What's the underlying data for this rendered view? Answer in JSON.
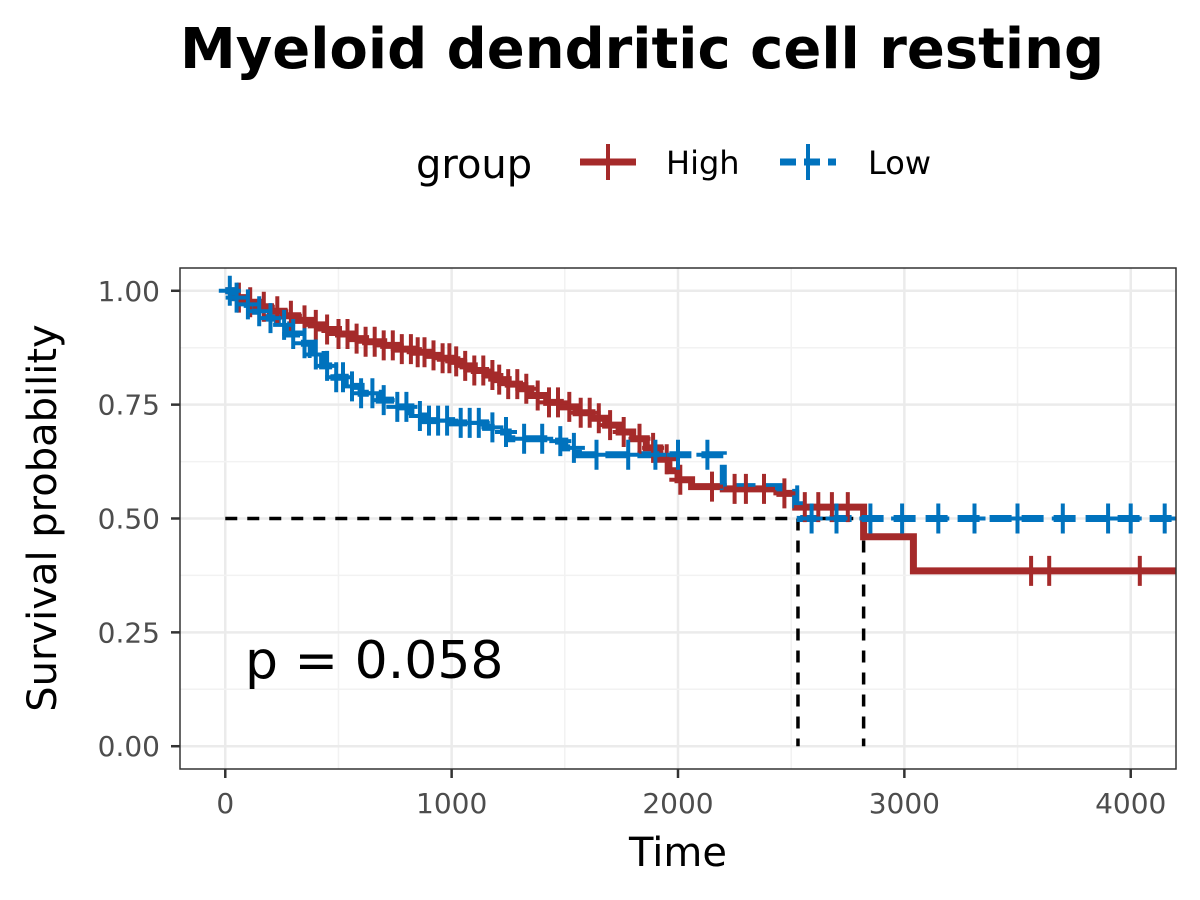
{
  "chart_data": {
    "type": "line",
    "subtype": "kaplan-meier",
    "title": "Myeloid dendritic cell resting",
    "xlabel": "Time",
    "ylabel": "Survival probability",
    "xlim": [
      -200,
      4200
    ],
    "ylim": [
      -0.05,
      1.05
    ],
    "x_ticks": [
      0,
      1000,
      2000,
      3000,
      4000
    ],
    "x_tick_labels": [
      "0",
      "1000",
      "2000",
      "3000",
      "4000"
    ],
    "y_ticks": [
      0,
      0.25,
      0.5,
      0.75,
      1.0
    ],
    "y_tick_labels": [
      "0.00",
      "0.25",
      "0.50",
      "0.75",
      "1.00"
    ],
    "grid": true,
    "legend": {
      "title": "group",
      "position": "top"
    },
    "annotation": "p = 0.058",
    "median_line": {
      "y": 0.5,
      "x": [
        2530,
        2820
      ]
    },
    "series": [
      {
        "name": "High",
        "color": "#a52a2a",
        "dash": "solid",
        "steps": [
          [
            0,
            1.0
          ],
          [
            40,
            0.985
          ],
          [
            90,
            0.975
          ],
          [
            150,
            0.965
          ],
          [
            200,
            0.955
          ],
          [
            260,
            0.945
          ],
          [
            320,
            0.935
          ],
          [
            380,
            0.925
          ],
          [
            440,
            0.915
          ],
          [
            500,
            0.905
          ],
          [
            560,
            0.895
          ],
          [
            620,
            0.888
          ],
          [
            700,
            0.88
          ],
          [
            760,
            0.872
          ],
          [
            830,
            0.865
          ],
          [
            900,
            0.858
          ],
          [
            950,
            0.852
          ],
          [
            1000,
            0.845
          ],
          [
            1050,
            0.835
          ],
          [
            1100,
            0.825
          ],
          [
            1150,
            0.815
          ],
          [
            1200,
            0.805
          ],
          [
            1250,
            0.795
          ],
          [
            1300,
            0.785
          ],
          [
            1350,
            0.77
          ],
          [
            1420,
            0.755
          ],
          [
            1480,
            0.745
          ],
          [
            1550,
            0.732
          ],
          [
            1620,
            0.72
          ],
          [
            1680,
            0.705
          ],
          [
            1740,
            0.69
          ],
          [
            1800,
            0.675
          ],
          [
            1860,
            0.655
          ],
          [
            1920,
            0.63
          ],
          [
            1960,
            0.605
          ],
          [
            2000,
            0.585
          ],
          [
            2060,
            0.57
          ],
          [
            2200,
            0.565
          ],
          [
            2450,
            0.555
          ],
          [
            2520,
            0.525
          ],
          [
            2820,
            0.46
          ],
          [
            3040,
            0.385
          ],
          [
            4200,
            0.385
          ]
        ],
        "censor_x": [
          60,
          110,
          170,
          230,
          290,
          350,
          400,
          450,
          500,
          540,
          580,
          620,
          660,
          700,
          740,
          780,
          820,
          850,
          880,
          920,
          960,
          990,
          1020,
          1060,
          1100,
          1140,
          1180,
          1210,
          1250,
          1290,
          1330,
          1380,
          1430,
          1470,
          1520,
          1570,
          1610,
          1650,
          1700,
          1760,
          1830,
          1890,
          1950,
          2010,
          2150,
          2250,
          2300,
          2380,
          2470,
          2560,
          2620,
          2680,
          2750,
          3560,
          3640,
          4040
        ]
      },
      {
        "name": "Low",
        "color": "#0072bd",
        "dash": "dashed",
        "steps": [
          [
            0,
            1.0
          ],
          [
            30,
            0.985
          ],
          [
            80,
            0.97
          ],
          [
            130,
            0.955
          ],
          [
            180,
            0.94
          ],
          [
            230,
            0.925
          ],
          [
            280,
            0.905
          ],
          [
            330,
            0.885
          ],
          [
            380,
            0.86
          ],
          [
            430,
            0.835
          ],
          [
            480,
            0.81
          ],
          [
            530,
            0.79
          ],
          [
            600,
            0.775
          ],
          [
            680,
            0.76
          ],
          [
            750,
            0.745
          ],
          [
            820,
            0.725
          ],
          [
            880,
            0.715
          ],
          [
            1000,
            0.71
          ],
          [
            1150,
            0.7
          ],
          [
            1200,
            0.69
          ],
          [
            1250,
            0.675
          ],
          [
            1450,
            0.67
          ],
          [
            1500,
            0.655
          ],
          [
            1560,
            0.64
          ],
          [
            2100,
            0.64
          ],
          [
            2200,
            0.57
          ],
          [
            2450,
            0.565
          ],
          [
            2520,
            0.53
          ],
          [
            2540,
            0.5
          ],
          [
            4200,
            0.5
          ]
        ],
        "censor_x": [
          20,
          50,
          100,
          150,
          200,
          260,
          300,
          350,
          400,
          450,
          490,
          520,
          560,
          600,
          650,
          700,
          760,
          800,
          860,
          900,
          940,
          980,
          1040,
          1080,
          1120,
          1180,
          1240,
          1320,
          1400,
          1480,
          1540,
          1640,
          1780,
          1900,
          2000,
          2130,
          2590,
          2700,
          2850,
          2990,
          3150,
          3310,
          3500,
          3700,
          3900,
          4000,
          4150
        ]
      }
    ]
  }
}
